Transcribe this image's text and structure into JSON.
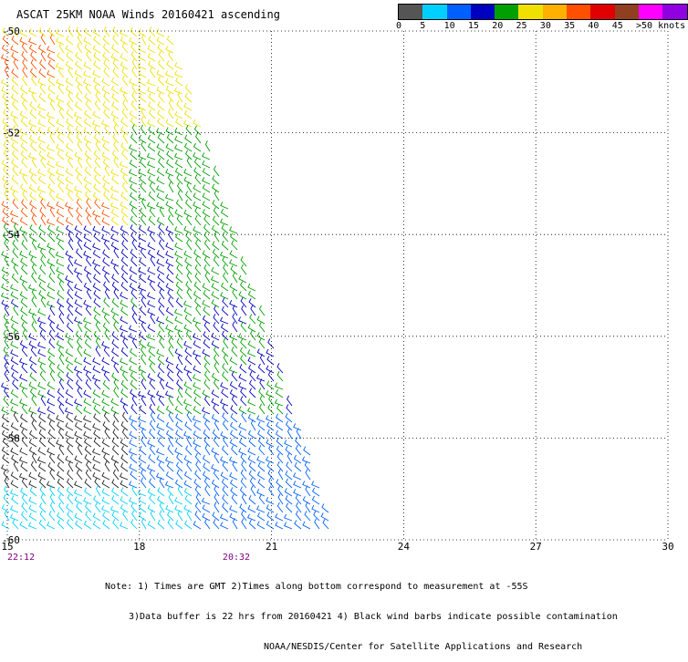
{
  "title": "ASCAT 25KM NOAA Winds 20160421 ascending",
  "legend": {
    "colors": [
      "#555555",
      "#00d0ff",
      "#0060ff",
      "#0000c0",
      "#00a000",
      "#f0e000",
      "#ffb000",
      "#ff5000",
      "#e00000",
      "#904020",
      "#ff00ff",
      "#9000e0"
    ],
    "labels": [
      "0",
      "5",
      "10",
      "15",
      "20",
      "25",
      "30",
      "35",
      "40",
      "45",
      ">50 knots"
    ],
    "label_values": [
      0,
      5,
      10,
      15,
      20,
      25,
      30,
      35,
      40,
      45,
      50
    ]
  },
  "map": {
    "lon_range": [
      15,
      30
    ],
    "lat_range": [
      -50,
      -60
    ],
    "lon_ticks": [
      "15",
      "18",
      "21",
      "24",
      "27",
      "30"
    ],
    "lat_ticks": [
      "-50",
      "-52",
      "-54",
      "-56",
      "-58",
      "-60"
    ],
    "times": [
      {
        "label": "22:12",
        "lon": 15
      },
      {
        "label": "20:32",
        "lon": 20.2
      }
    ]
  },
  "notes": [
    "Note: 1) Times are GMT 2)Times along bottom correspond to measurement at -55S",
    "3)Data buffer is 22 hrs from 20160421 4) Black wind barbs indicate possible contamination",
    "NOAA/NESDIS/Center for Satellite Applications and Research"
  ]
}
